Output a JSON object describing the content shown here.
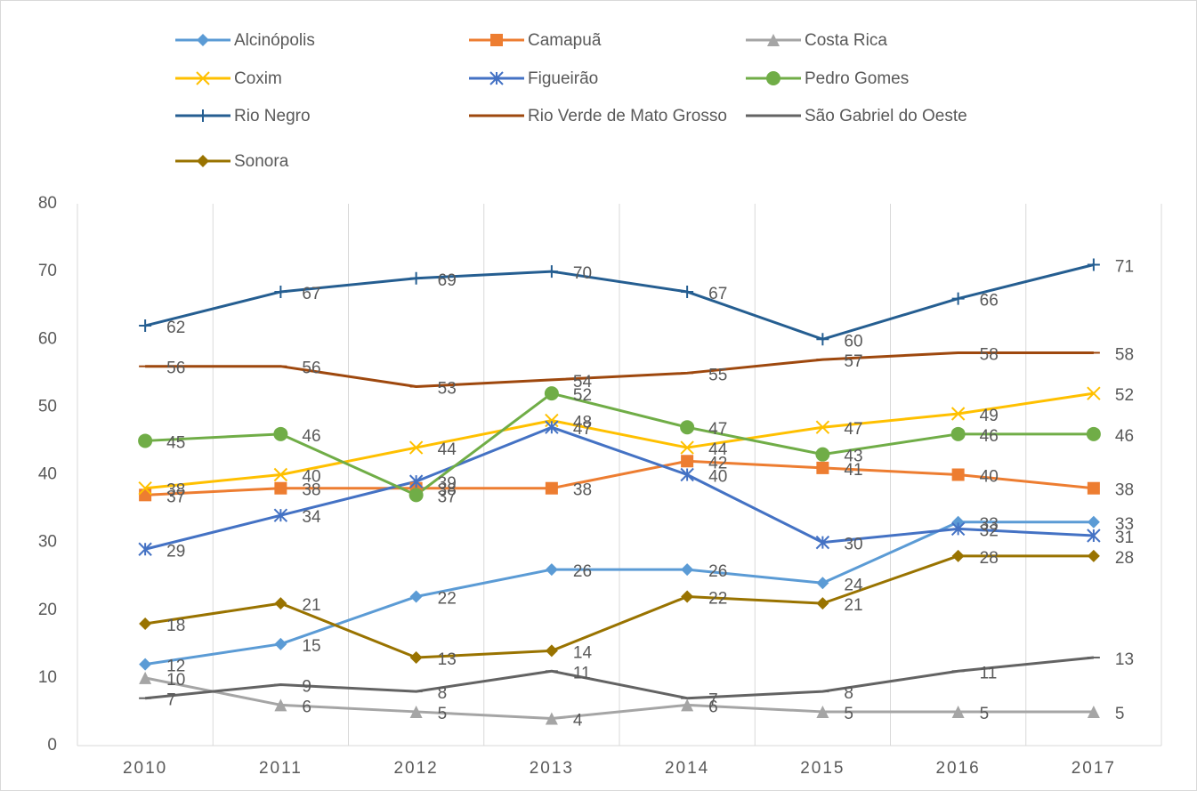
{
  "chart_data": {
    "type": "line",
    "categories": [
      "2010",
      "2011",
      "2012",
      "2013",
      "2014",
      "2015",
      "2016",
      "2017"
    ],
    "ylim": [
      0,
      80
    ],
    "yticks": [
      0,
      10,
      20,
      30,
      40,
      50,
      60,
      70,
      80
    ],
    "grid": "vertical",
    "legend": "top",
    "series": [
      {
        "name": "Alcinópolis",
        "color": "#5B9BD5",
        "marker": "diamond",
        "values": [
          12,
          15,
          22,
          26,
          26,
          24,
          33,
          33
        ]
      },
      {
        "name": "Camapuã",
        "color": "#ED7D31",
        "marker": "square",
        "values": [
          37,
          38,
          38,
          38,
          42,
          41,
          40,
          38
        ]
      },
      {
        "name": "Costa Rica",
        "color": "#A5A5A5",
        "marker": "triangle",
        "values": [
          10,
          6,
          5,
          4,
          6,
          5,
          5,
          5
        ]
      },
      {
        "name": "Coxim",
        "color": "#FFC000",
        "marker": "x",
        "values": [
          38,
          40,
          44,
          48,
          44,
          47,
          49,
          52
        ]
      },
      {
        "name": "Figueirão",
        "color": "#4472C4",
        "marker": "star",
        "values": [
          29,
          34,
          39,
          47,
          40,
          30,
          32,
          31
        ]
      },
      {
        "name": "Pedro Gomes",
        "color": "#70AD47",
        "marker": "circle",
        "values": [
          45,
          46,
          37,
          52,
          47,
          43,
          46,
          46
        ]
      },
      {
        "name": "Rio Negro",
        "color": "#255E91",
        "marker": "plus",
        "values": [
          62,
          67,
          69,
          70,
          67,
          60,
          66,
          71
        ]
      },
      {
        "name": "Rio Verde de Mato Grosso",
        "color": "#9E480E",
        "marker": "dash",
        "values": [
          56,
          56,
          53,
          54,
          55,
          57,
          58,
          58
        ]
      },
      {
        "name": "São Gabriel do Oeste",
        "color": "#636363",
        "marker": "dash",
        "values": [
          7,
          9,
          8,
          11,
          7,
          8,
          11,
          13
        ]
      },
      {
        "name": "Sonora",
        "color": "#997300",
        "marker": "diamond",
        "values": [
          18,
          21,
          13,
          14,
          22,
          21,
          28,
          28
        ]
      }
    ]
  }
}
